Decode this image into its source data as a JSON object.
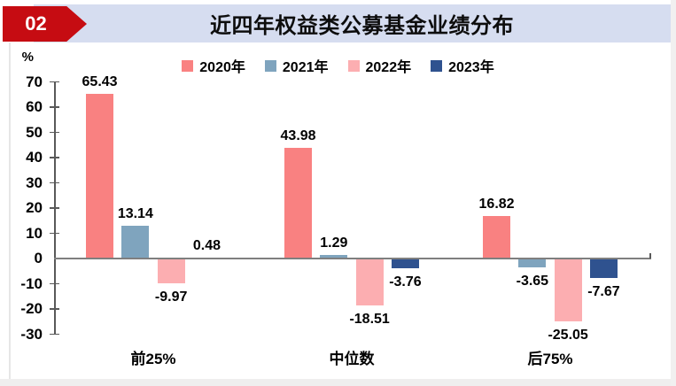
{
  "header": {
    "badge": "02",
    "title": "近四年权益类公募基金业绩分布",
    "badge_color": "#C60C12",
    "banner_color": "#D6DDF0"
  },
  "chart_data": {
    "type": "bar",
    "title": "近四年权益类公募基金业绩分布",
    "xlabel": "",
    "ylabel": "%",
    "categories": [
      "前25%",
      "中位数",
      "后75%"
    ],
    "series": [
      {
        "name": "2020年",
        "color": "#F98181",
        "values": [
          65.43,
          43.98,
          16.82
        ]
      },
      {
        "name": "2021年",
        "color": "#7FA4BE",
        "values": [
          13.14,
          1.29,
          -3.65
        ]
      },
      {
        "name": "2022年",
        "color": "#FCAEB1",
        "values": [
          -9.97,
          -18.51,
          -25.05
        ]
      },
      {
        "name": "2023年",
        "color": "#2F528F",
        "values": [
          0.48,
          -3.76,
          -7.67
        ]
      }
    ],
    "ylim": [
      -30,
      70
    ],
    "ytick_step": 10,
    "grid": false,
    "legend_position": "top",
    "value_labels_shown": true
  },
  "colors": {
    "axis_line": "#7F7F7F",
    "tick_line": "#595959",
    "text": "#000000"
  }
}
